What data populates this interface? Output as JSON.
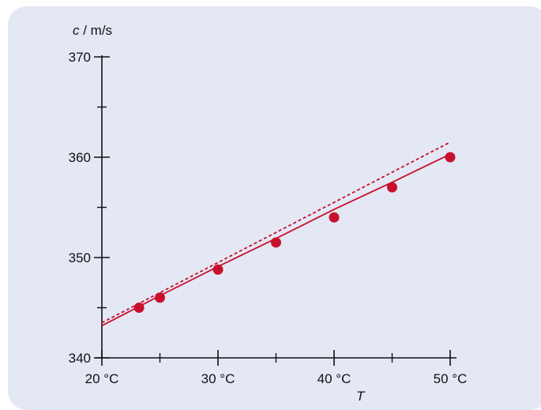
{
  "chart_data": {
    "type": "scatter",
    "ylabel_var": "c",
    "ylabel_unit": " / m/s",
    "xlabel": "T",
    "xlim": [
      20,
      50
    ],
    "ylim": [
      340,
      370
    ],
    "x_ticks": [
      20,
      30,
      40,
      50
    ],
    "x_tick_labels": [
      "20 °C",
      "30 °C",
      "40 °C",
      "50 °C"
    ],
    "x_minor_ticks": [
      25,
      35,
      45
    ],
    "y_ticks": [
      340,
      350,
      360,
      370
    ],
    "y_tick_labels": [
      "340",
      "350",
      "360",
      "370"
    ],
    "y_minor_ticks": [
      345,
      355,
      365
    ],
    "grid": false,
    "color": "#c8102e",
    "series": [
      {
        "kind": "points",
        "x": [
          23.2,
          25,
          30,
          35,
          40,
          45,
          50
        ],
        "y": [
          345.0,
          346.0,
          348.8,
          351.5,
          354.0,
          357.0,
          360.0
        ]
      },
      {
        "kind": "line-solid",
        "x": [
          20,
          25,
          30,
          35,
          40,
          45,
          50
        ],
        "y": [
          343.2,
          346.2,
          349.1,
          351.9,
          354.8,
          357.5,
          360.3
        ]
      },
      {
        "kind": "line-dashed",
        "x": [
          20,
          50
        ],
        "y": [
          343.5,
          361.5
        ]
      }
    ]
  }
}
